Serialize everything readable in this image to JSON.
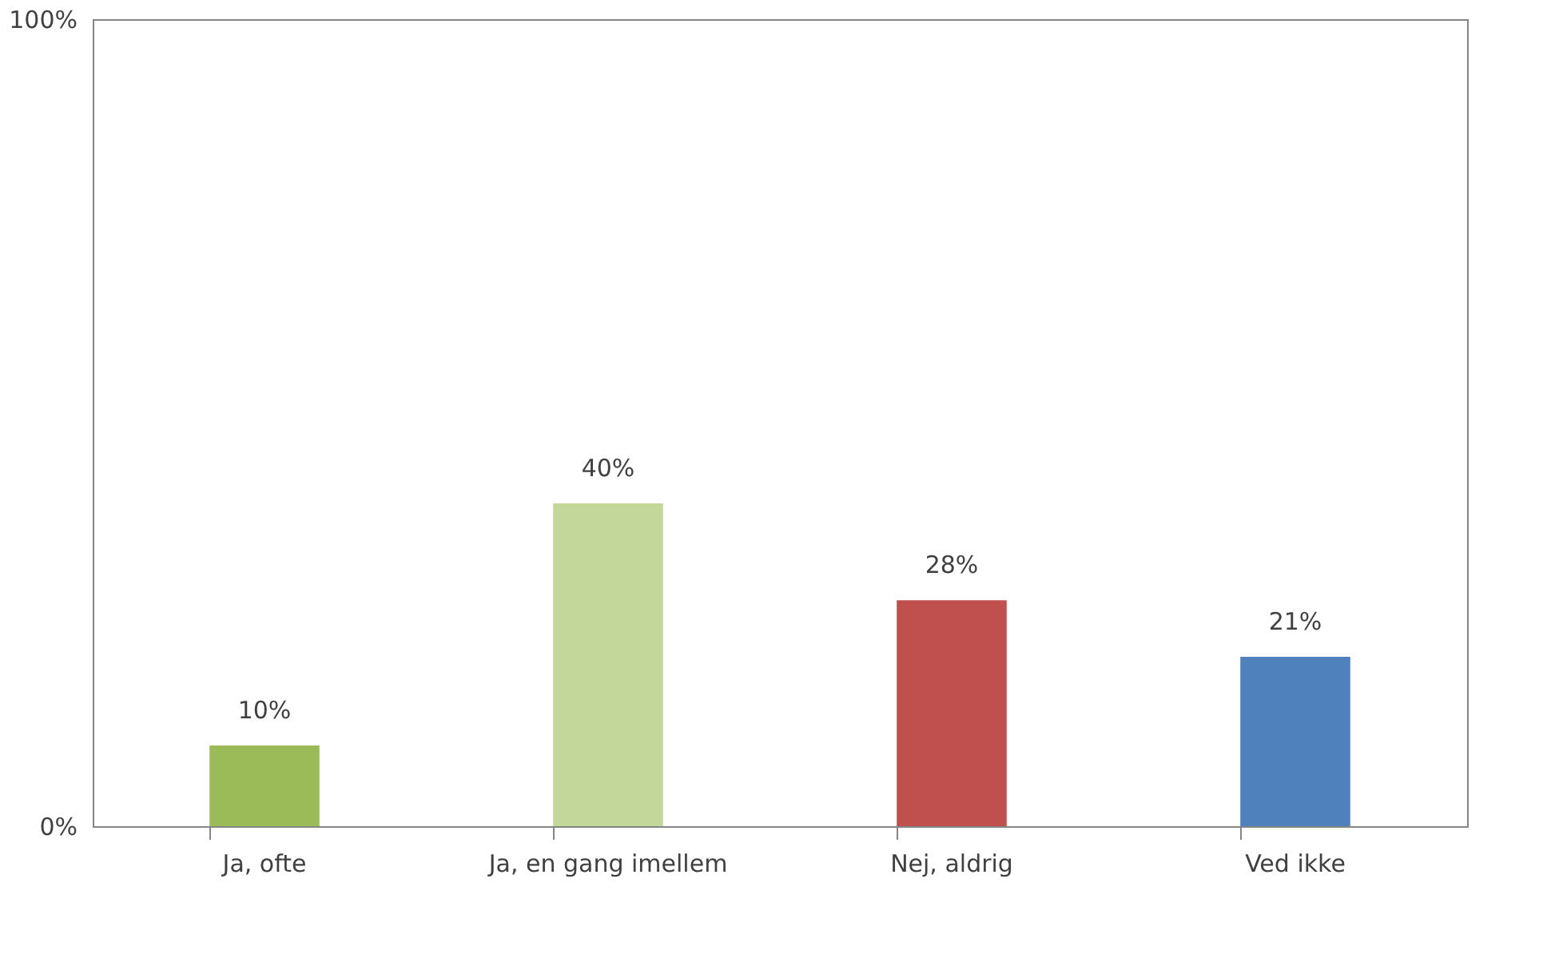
{
  "chart_data": {
    "type": "bar",
    "categories": [
      "Ja, ofte",
      "Ja, en gang imellem",
      "Nej, aldrig",
      "Ved ikke"
    ],
    "values": [
      10,
      40,
      28,
      21
    ],
    "colors": [
      "#9bbb59",
      "#c4d79b",
      "#c0504d",
      "#4f81bd"
    ],
    "ylim": [
      0,
      100
    ],
    "yticks": [
      {
        "value": 0,
        "label": "0%"
      },
      {
        "value": 100,
        "label": "100%"
      }
    ],
    "value_labels": [
      "10%",
      "40%",
      "28%",
      "21%"
    ],
    "grid": false
  }
}
